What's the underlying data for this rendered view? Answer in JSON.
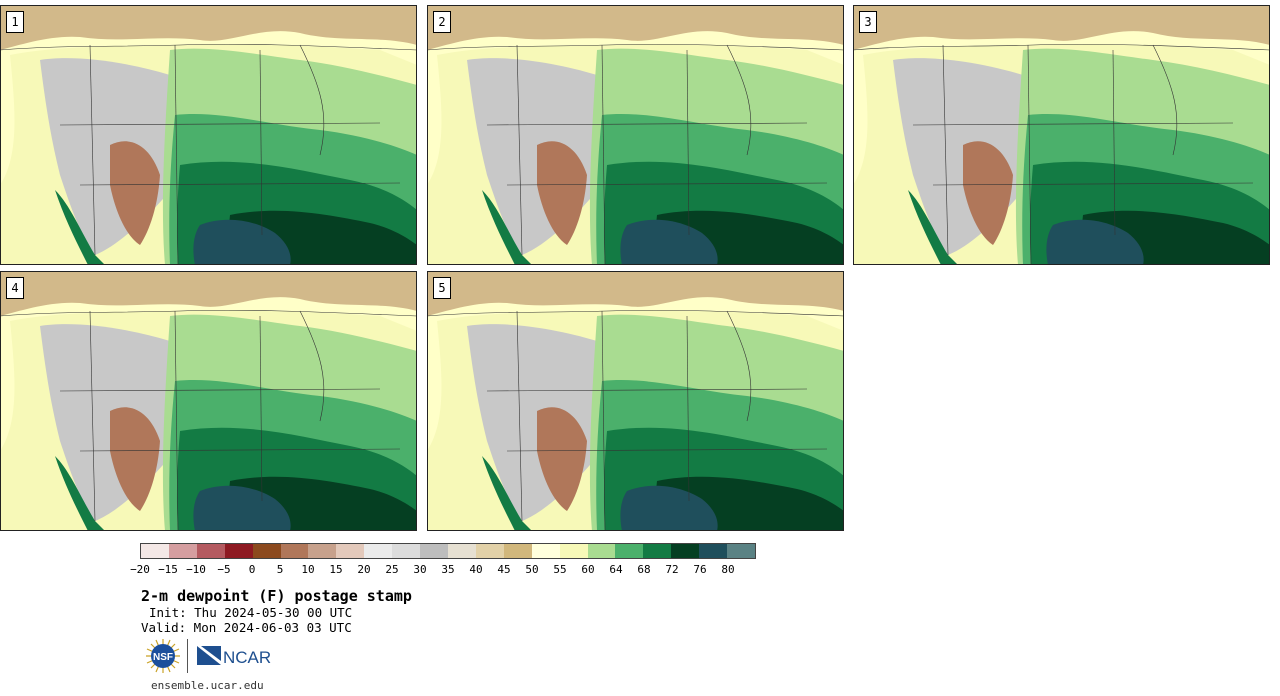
{
  "panels": [
    {
      "label": "1"
    },
    {
      "label": "2"
    },
    {
      "label": "3"
    },
    {
      "label": "4"
    },
    {
      "label": "5"
    }
  ],
  "legend": {
    "colors": [
      "#f4e8e6",
      "#d59ea0",
      "#b45a60",
      "#8e1a22",
      "#8c4a1e",
      "#b0775a",
      "#c7a18c",
      "#e3c9bb",
      "#ebebeb",
      "#dcdcdc",
      "#bdbdbd",
      "#e6e0d2",
      "#e2d1a8",
      "#d1b77c",
      "#ffffdd",
      "#f7f9b8",
      "#a9dc91",
      "#4bb06b",
      "#137b44",
      "#053f22",
      "#1f4f5c",
      "#5a8284"
    ],
    "ticks": [
      "−20",
      "−15",
      "−10",
      "−5",
      "0",
      "5",
      "10",
      "15",
      "20",
      "25",
      "30",
      "35",
      "40",
      "45",
      "50",
      "55",
      "60",
      "64",
      "68",
      "72",
      "76",
      "80"
    ]
  },
  "title": "2-m dewpoint (F) postage stamp",
  "init": "Init: Thu 2024-05-30 00 UTC",
  "valid": "Valid: Mon 2024-06-03 03 UTC",
  "logos": {
    "nsf": "NSF",
    "ncar": "NCAR"
  },
  "url": "ensemble.ucar.edu",
  "map_colors": {
    "ocean_pacific": "#ffffc8",
    "canada": "#d2b98a",
    "rockies_gray": "#c8c8c8",
    "plains_light": "#f7f9b8",
    "east_green_light": "#a9dc91",
    "green_mid": "#4bb06b",
    "green_dark": "#137b44",
    "green_darkest": "#053f22",
    "gulf": "#1f4f5c",
    "desert_brown": "#b0775a",
    "border": "#333333"
  }
}
